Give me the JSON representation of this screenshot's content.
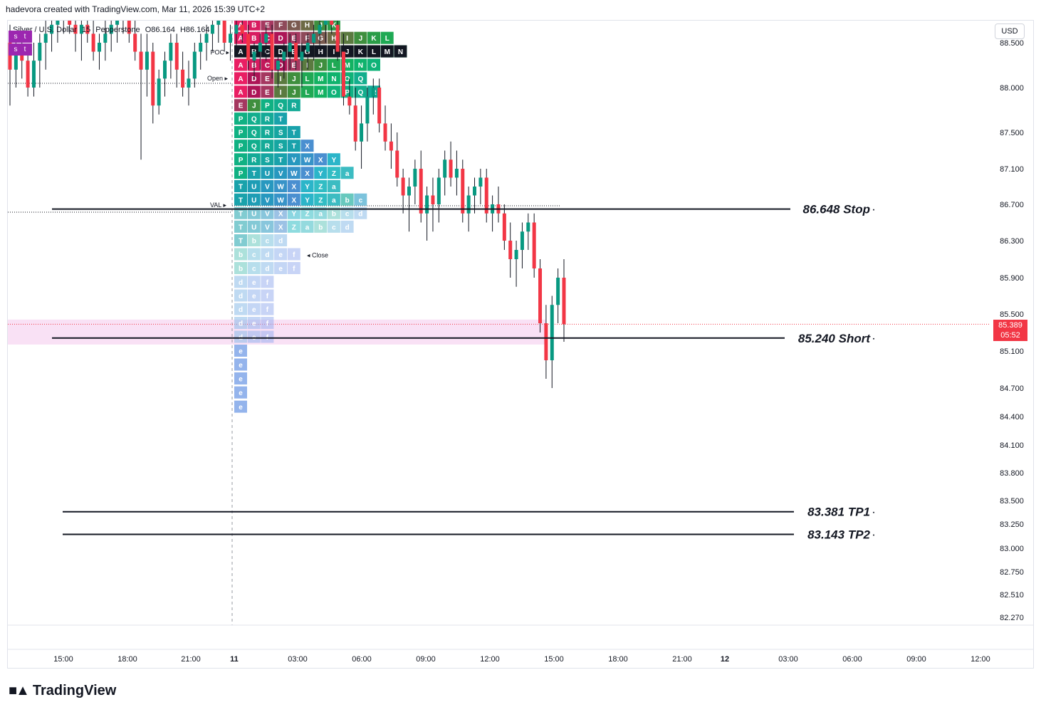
{
  "header": {
    "attribution": "hadevora created with TradingView.com, Mar 11, 2026 15:39 UTC+2"
  },
  "symbol": {
    "name": "Silver / U.S. Dollar",
    "interval": "15",
    "broker": "Pepperstone",
    "open": "O86.164",
    "high": "H86.164"
  },
  "tags": [
    "s",
    "t",
    "s",
    "t"
  ],
  "toolbar": {
    "currency": "USD"
  },
  "footer": {
    "brand": "TradingView"
  },
  "colors": {
    "up": "#089981",
    "down": "#f23645",
    "pink_zone": "#f7d9f3",
    "badge": "#f23645"
  },
  "last_price": {
    "value": "85.389",
    "countdown": "05:52"
  },
  "chart_data": {
    "type": "candlestick",
    "x_ticks": [
      "15:00",
      "18:00",
      "21:00",
      "11",
      "03:00",
      "06:00",
      "09:00",
      "12:00",
      "15:00",
      "18:00",
      "21:00",
      "12",
      "03:00",
      "06:00",
      "09:00",
      "12:00"
    ],
    "y_ticks": [
      88.5,
      88.0,
      87.5,
      87.1,
      86.7,
      86.3,
      85.9,
      85.5,
      85.1,
      84.7,
      84.4,
      84.1,
      83.8,
      83.5,
      83.25,
      83.0,
      82.75,
      82.51,
      82.27
    ],
    "y_tick_labels": [
      "88.500",
      "88.000",
      "87.500",
      "87.100",
      "86.700",
      "86.300",
      "85.900",
      "85.500",
      "85.100",
      "84.700",
      "84.400",
      "84.100",
      "83.800",
      "83.500",
      "83.250",
      "83.000",
      "82.750",
      "82.510",
      "82.270"
    ],
    "levels": [
      {
        "price": 86.648,
        "label": "86.648 Stop"
      },
      {
        "price": 85.24,
        "label": "85.240 Short"
      },
      {
        "price": 83.381,
        "label": "83.381 TP1"
      },
      {
        "price": 83.143,
        "label": "83.143 TP2"
      }
    ],
    "profile_markers": {
      "poc": "POC",
      "val": "VAL",
      "open": "Open",
      "close": "Close"
    },
    "tpo_rows": [
      {
        "price": 88.7,
        "letters": [
          "A",
          "B",
          "E",
          "F",
          "G",
          "H",
          "J",
          "K"
        ]
      },
      {
        "price": 88.55,
        "letters": [
          "A",
          "B",
          "C",
          "D",
          "E",
          "F",
          "G",
          "H",
          "I",
          "J",
          "K",
          "L"
        ]
      },
      {
        "price": 88.4,
        "letters": [
          "A",
          "B",
          "C",
          "D",
          "E",
          "G",
          "H",
          "I",
          "J",
          "K",
          "L",
          "M",
          "N"
        ]
      },
      {
        "price": 88.25,
        "letters": [
          "A",
          "B",
          "C",
          "D",
          "E",
          "I",
          "J",
          "L",
          "M",
          "N",
          "O"
        ]
      },
      {
        "price": 88.1,
        "letters": [
          "A",
          "D",
          "E",
          "I",
          "J",
          "L",
          "M",
          "N",
          "O",
          "Q"
        ]
      },
      {
        "price": 87.95,
        "letters": [
          "A",
          "D",
          "E",
          "I",
          "J",
          "L",
          "M",
          "O",
          "P",
          "Q",
          "R"
        ]
      },
      {
        "price": 87.8,
        "letters": [
          "E",
          "J",
          "P",
          "Q",
          "R"
        ]
      },
      {
        "price": 87.65,
        "letters": [
          "P",
          "Q",
          "R",
          "T"
        ]
      },
      {
        "price": 87.5,
        "letters": [
          "P",
          "Q",
          "R",
          "S",
          "T"
        ]
      },
      {
        "price": 87.35,
        "letters": [
          "P",
          "Q",
          "R",
          "S",
          "T",
          "X"
        ]
      },
      {
        "price": 87.2,
        "letters": [
          "P",
          "R",
          "S",
          "T",
          "V",
          "W",
          "X",
          "Y"
        ]
      },
      {
        "price": 87.05,
        "letters": [
          "P",
          "T",
          "U",
          "V",
          "W",
          "X",
          "Y",
          "Z",
          "a"
        ]
      },
      {
        "price": 86.9,
        "letters": [
          "T",
          "U",
          "V",
          "W",
          "X",
          "Y",
          "Z",
          "a"
        ]
      },
      {
        "price": 86.75,
        "letters": [
          "T",
          "U",
          "V",
          "W",
          "X",
          "Y",
          "Z",
          "a",
          "b",
          "c"
        ]
      },
      {
        "price": 86.6,
        "letters": [
          "T",
          "U",
          "V",
          "X",
          "Y",
          "Z",
          "a",
          "b",
          "c",
          "d"
        ]
      },
      {
        "price": 86.45,
        "letters": [
          "T",
          "U",
          "V",
          "X",
          "Z",
          "a",
          "b",
          "c",
          "d"
        ]
      },
      {
        "price": 86.3,
        "letters": [
          "T",
          "b",
          "c",
          "d"
        ]
      },
      {
        "price": 86.15,
        "letters": [
          "b",
          "c",
          "d",
          "e",
          "f"
        ]
      },
      {
        "price": 86.0,
        "letters": [
          "b",
          "c",
          "d",
          "e",
          "f"
        ]
      },
      {
        "price": 85.85,
        "letters": [
          "d",
          "e",
          "f"
        ]
      },
      {
        "price": 85.7,
        "letters": [
          "d",
          "e",
          "f"
        ]
      },
      {
        "price": 85.55,
        "letters": [
          "d",
          "e",
          "f"
        ]
      },
      {
        "price": 85.4,
        "letters": [
          "d",
          "e",
          "f"
        ]
      },
      {
        "price": 85.25,
        "letters": [
          "d",
          "e",
          "f"
        ]
      },
      {
        "price": 85.1,
        "letters": [
          "e"
        ]
      },
      {
        "price": 84.95,
        "letters": [
          "e"
        ]
      },
      {
        "price": 84.8,
        "letters": [
          "e"
        ]
      },
      {
        "price": 84.65,
        "letters": [
          "e"
        ]
      },
      {
        "price": 84.5,
        "letters": [
          "e"
        ]
      }
    ],
    "candles": [
      [
        88.5,
        88.7,
        87.8,
        88.2
      ],
      [
        88.2,
        88.6,
        88.0,
        88.4
      ],
      [
        88.4,
        88.5,
        88.1,
        88.3
      ],
      [
        88.3,
        88.4,
        87.9,
        88.0
      ],
      [
        88.0,
        88.5,
        87.9,
        88.3
      ],
      [
        88.3,
        88.6,
        88.0,
        88.5
      ],
      [
        88.5,
        88.9,
        88.2,
        88.6
      ],
      [
        88.6,
        88.9,
        88.4,
        88.7
      ],
      [
        88.7,
        89.0,
        88.5,
        88.8
      ],
      [
        88.8,
        89.1,
        88.6,
        88.9
      ],
      [
        88.9,
        89.0,
        88.6,
        88.7
      ],
      [
        88.7,
        88.9,
        88.4,
        88.6
      ],
      [
        88.6,
        88.8,
        88.3,
        88.7
      ],
      [
        88.7,
        88.9,
        88.5,
        88.6
      ],
      [
        88.6,
        88.8,
        88.3,
        88.4
      ],
      [
        88.4,
        88.6,
        88.2,
        88.5
      ],
      [
        88.5,
        88.8,
        88.3,
        88.6
      ],
      [
        88.6,
        88.9,
        88.4,
        88.7
      ],
      [
        88.7,
        88.9,
        88.5,
        88.8
      ],
      [
        88.8,
        89.1,
        88.6,
        88.9
      ],
      [
        88.9,
        89.0,
        88.5,
        88.6
      ],
      [
        88.6,
        88.8,
        88.3,
        88.4
      ],
      [
        88.4,
        88.6,
        87.2,
        88.2
      ],
      [
        88.2,
        88.6,
        87.9,
        88.4
      ],
      [
        88.4,
        88.5,
        87.6,
        87.8
      ],
      [
        87.8,
        88.2,
        87.7,
        88.1
      ],
      [
        88.1,
        88.4,
        87.9,
        88.3
      ],
      [
        88.3,
        88.6,
        88.1,
        88.5
      ],
      [
        88.5,
        88.6,
        88.0,
        88.2
      ],
      [
        88.2,
        88.4,
        87.9,
        88.0
      ],
      [
        88.0,
        88.3,
        87.8,
        88.1
      ],
      [
        88.1,
        88.5,
        88.0,
        88.4
      ],
      [
        88.4,
        88.6,
        88.2,
        88.5
      ],
      [
        88.5,
        88.7,
        88.3,
        88.6
      ],
      [
        88.6,
        88.8,
        88.4,
        88.7
      ],
      [
        88.7,
        88.9,
        88.5,
        88.8
      ],
      [
        88.8,
        88.9,
        88.4,
        88.5
      ],
      [
        88.5,
        88.7,
        88.3,
        88.6
      ],
      [
        88.6,
        88.8,
        88.4,
        88.7
      ],
      [
        88.7,
        88.9,
        88.5,
        88.6
      ],
      [
        88.6,
        88.7,
        88.2,
        88.3
      ],
      [
        88.3,
        88.5,
        88.1,
        88.4
      ],
      [
        88.4,
        88.6,
        88.2,
        88.5
      ],
      [
        88.5,
        88.7,
        88.3,
        88.6
      ],
      [
        88.6,
        88.7,
        88.1,
        88.2
      ],
      [
        88.2,
        88.4,
        88.0,
        88.3
      ],
      [
        88.3,
        88.5,
        88.1,
        88.4
      ],
      [
        88.4,
        88.6,
        88.2,
        88.5
      ],
      [
        88.5,
        88.6,
        88.2,
        88.3
      ],
      [
        88.3,
        88.5,
        88.0,
        88.4
      ],
      [
        88.4,
        88.6,
        88.2,
        88.5
      ],
      [
        88.5,
        88.7,
        88.3,
        88.6
      ],
      [
        88.6,
        88.8,
        88.4,
        88.7
      ],
      [
        88.7,
        88.9,
        88.5,
        88.8
      ],
      [
        88.8,
        88.9,
        88.6,
        88.7
      ],
      [
        88.7,
        88.8,
        88.3,
        88.4
      ],
      [
        88.4,
        88.6,
        87.8,
        87.9
      ],
      [
        87.9,
        88.1,
        87.7,
        87.8
      ],
      [
        87.8,
        88.0,
        87.3,
        87.4
      ],
      [
        87.4,
        87.8,
        87.1,
        87.6
      ],
      [
        87.6,
        88.0,
        87.4,
        87.9
      ],
      [
        87.9,
        88.1,
        87.7,
        88.0
      ],
      [
        88.0,
        88.1,
        87.5,
        87.6
      ],
      [
        87.6,
        87.8,
        87.3,
        87.4
      ],
      [
        87.4,
        87.6,
        87.1,
        87.3
      ],
      [
        87.3,
        87.5,
        86.9,
        87.0
      ],
      [
        87.0,
        87.1,
        86.6,
        86.8
      ],
      [
        86.8,
        87.0,
        86.4,
        86.9
      ],
      [
        86.9,
        87.2,
        86.7,
        87.1
      ],
      [
        87.1,
        87.3,
        86.5,
        86.6
      ],
      [
        86.6,
        86.9,
        86.3,
        86.8
      ],
      [
        86.8,
        87.0,
        86.4,
        86.7
      ],
      [
        86.7,
        87.1,
        86.5,
        87.0
      ],
      [
        87.0,
        87.3,
        86.8,
        87.2
      ],
      [
        87.2,
        87.4,
        86.9,
        87.0
      ],
      [
        87.0,
        87.3,
        86.8,
        87.1
      ],
      [
        87.1,
        87.2,
        86.5,
        86.6
      ],
      [
        86.6,
        86.9,
        86.4,
        86.8
      ],
      [
        86.8,
        87.0,
        86.6,
        86.9
      ],
      [
        86.9,
        87.1,
        86.7,
        87.0
      ],
      [
        87.0,
        87.1,
        86.5,
        86.6
      ],
      [
        86.6,
        86.8,
        86.4,
        86.7
      ],
      [
        86.7,
        86.9,
        86.5,
        86.6
      ],
      [
        86.6,
        86.7,
        86.2,
        86.3
      ],
      [
        86.3,
        86.5,
        85.9,
        86.1
      ],
      [
        86.1,
        86.3,
        85.8,
        86.2
      ],
      [
        86.2,
        86.5,
        86.0,
        86.4
      ],
      [
        86.4,
        86.6,
        86.2,
        86.5
      ],
      [
        86.5,
        86.6,
        85.9,
        86.0
      ],
      [
        86.0,
        86.1,
        85.3,
        85.4
      ],
      [
        85.4,
        85.6,
        84.8,
        85.0
      ],
      [
        85.0,
        85.7,
        84.7,
        85.6
      ],
      [
        85.6,
        86.0,
        85.4,
        85.9
      ],
      [
        85.9,
        86.1,
        85.2,
        85.389
      ]
    ]
  }
}
